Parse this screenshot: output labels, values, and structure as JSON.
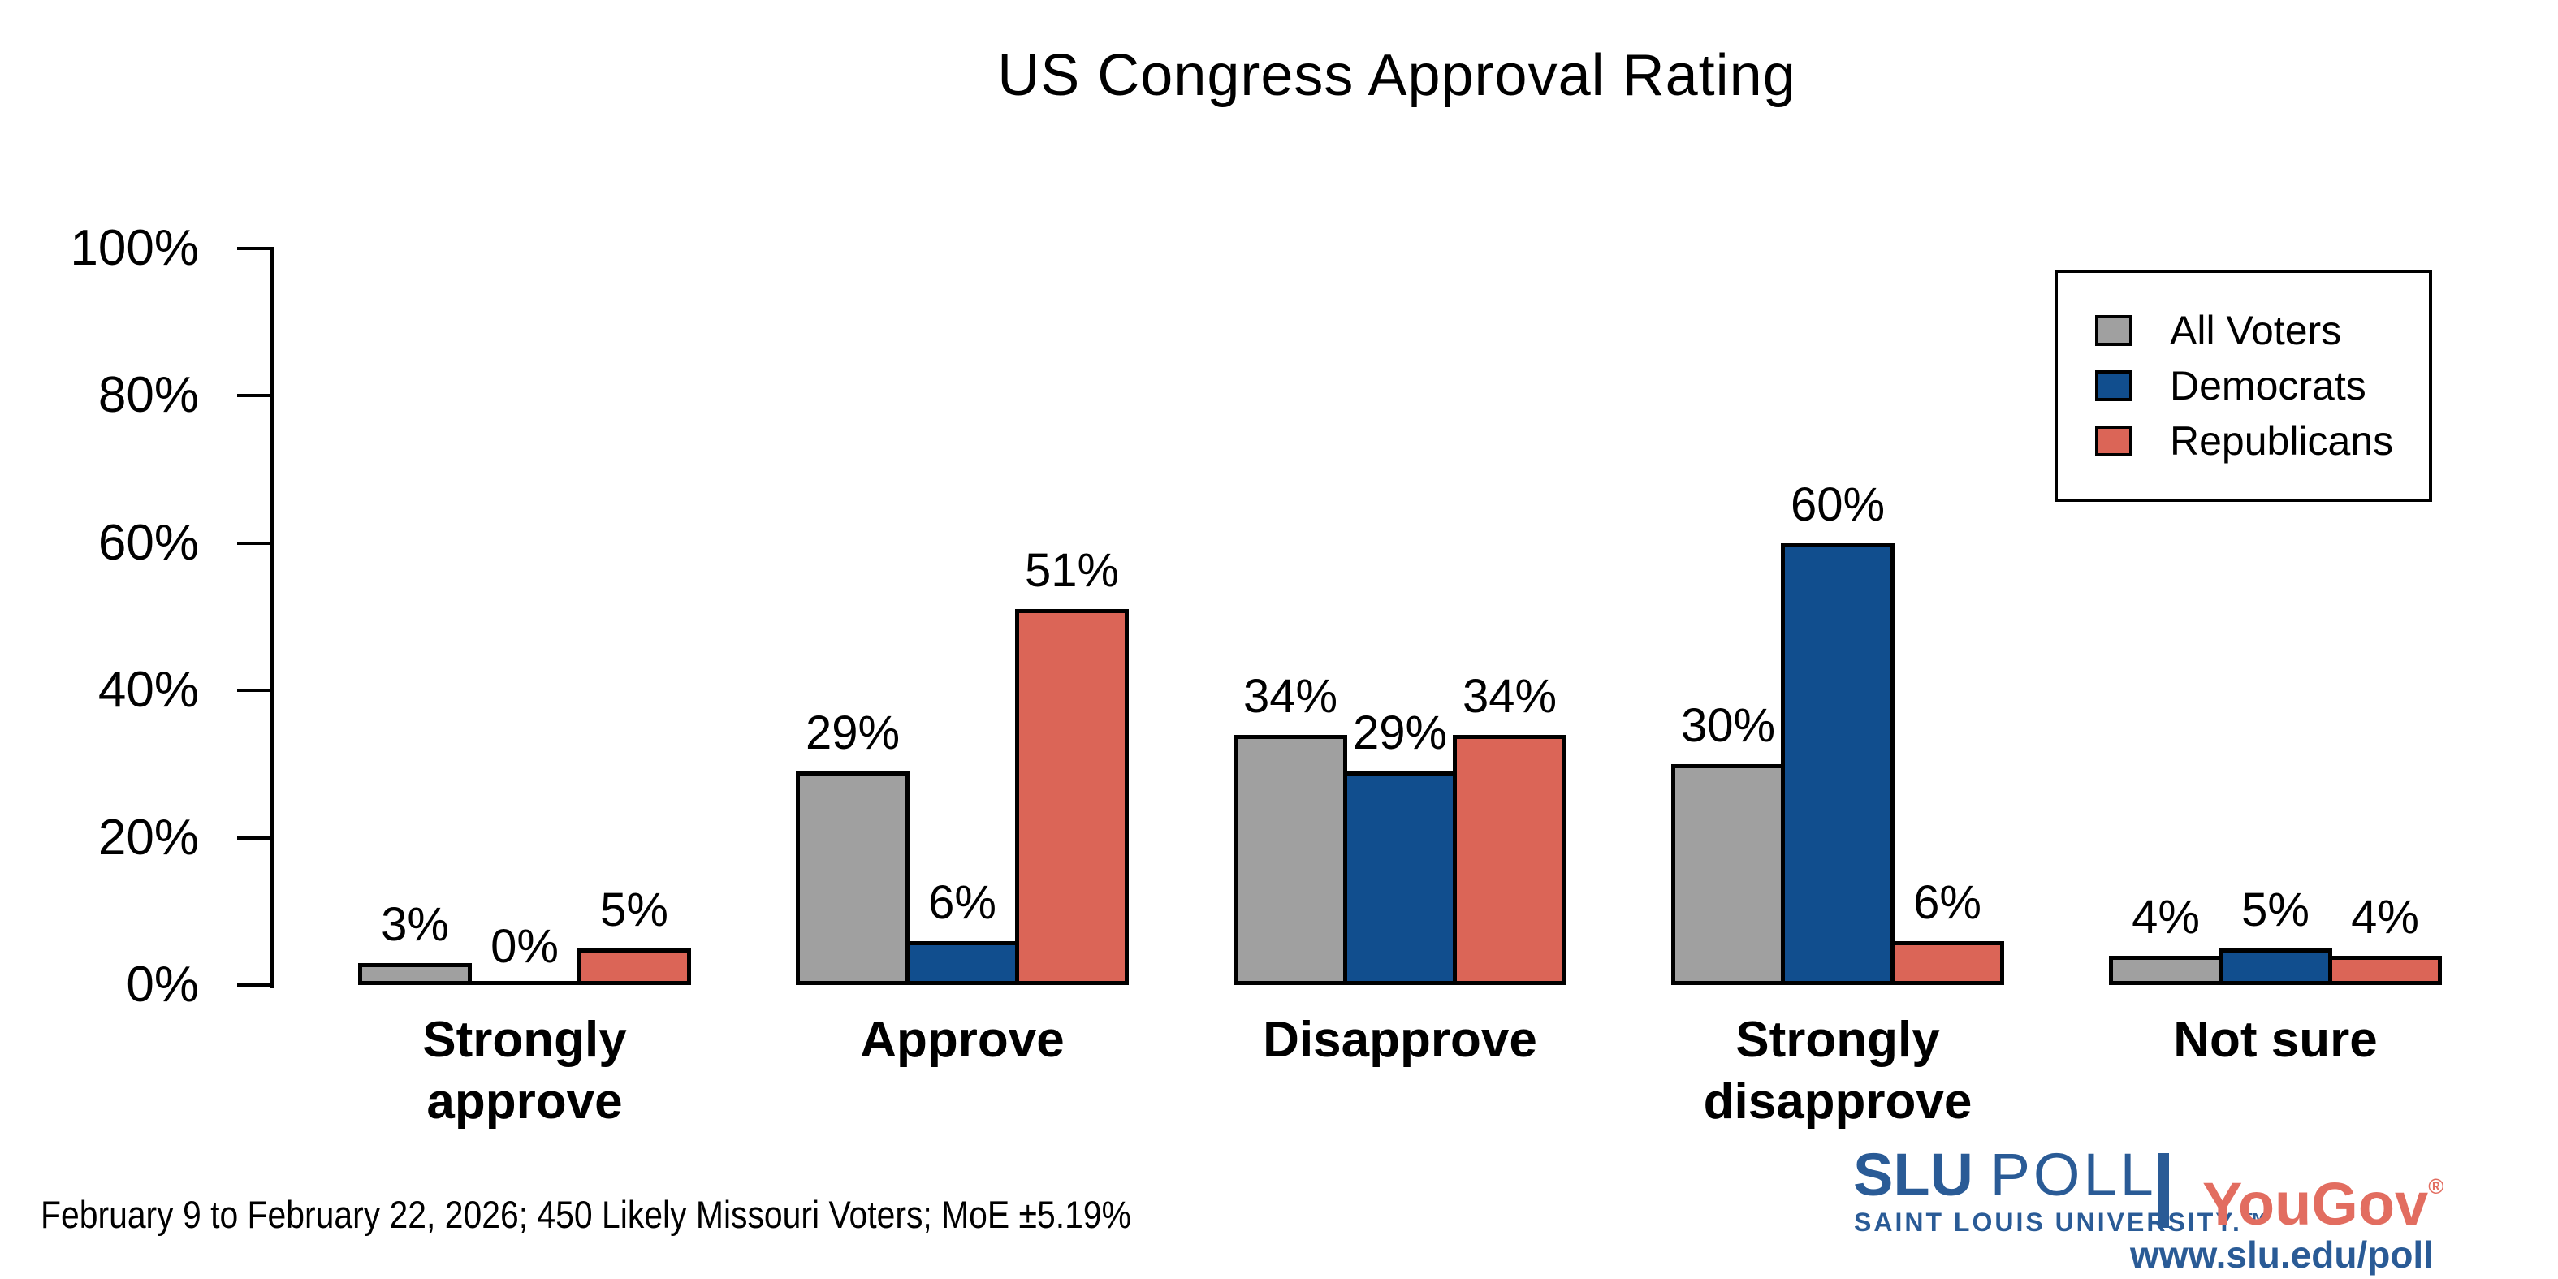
{
  "title": "US Congress Approval Rating",
  "footer": {
    "note": "February 9 to February 22, 2026; 450 Likely Missouri Voters; MoE ±5.19%"
  },
  "branding": {
    "slu": "SLU ",
    "poll": "POLL",
    "slu_subtitle": "SAINT LOUIS UNIVERSITY.™",
    "partner": "YouGov",
    "partner_reg": "®",
    "url": "www.slu.edu/poll"
  },
  "colors": {
    "all_voters": "#a0a0a0",
    "democrats": "#114e8e",
    "republicans": "#db6557",
    "outline": "#000000",
    "slu_blue": "#2a5b96",
    "yougov_red": "#e26d60"
  },
  "chart_data": {
    "type": "bar",
    "title": "US Congress Approval Rating",
    "categories": [
      "Strongly approve",
      "Approve",
      "Disapprove",
      "Strongly disapprove",
      "Not sure"
    ],
    "category_lines": [
      [
        "Strongly",
        "approve"
      ],
      [
        "Approve"
      ],
      [
        "Disapprove"
      ],
      [
        "Strongly",
        "disapprove"
      ],
      [
        "Not sure"
      ]
    ],
    "series": [
      {
        "name": "All Voters",
        "color": "#a0a0a0",
        "values": [
          3,
          29,
          34,
          30,
          4
        ],
        "labels": [
          "3%",
          "29%",
          "34%",
          "30%",
          "4%"
        ]
      },
      {
        "name": "Democrats",
        "color": "#114e8e",
        "values": [
          0,
          6,
          29,
          60,
          5
        ],
        "labels": [
          "0%",
          "6%",
          "29%",
          "60%",
          "5%"
        ]
      },
      {
        "name": "Republicans",
        "color": "#db6557",
        "values": [
          5,
          51,
          34,
          6,
          4
        ],
        "labels": [
          "5%",
          "51%",
          "34%",
          "6%",
          "4%"
        ]
      }
    ],
    "xlabel": "",
    "ylabel": "",
    "ylim": [
      0,
      100
    ],
    "yticks": [
      0,
      20,
      40,
      60,
      80,
      100
    ],
    "ytick_labels": [
      "0%",
      "20%",
      "40%",
      "60%",
      "80%",
      "100%"
    ],
    "grid": false,
    "legend_position": "upper right"
  }
}
